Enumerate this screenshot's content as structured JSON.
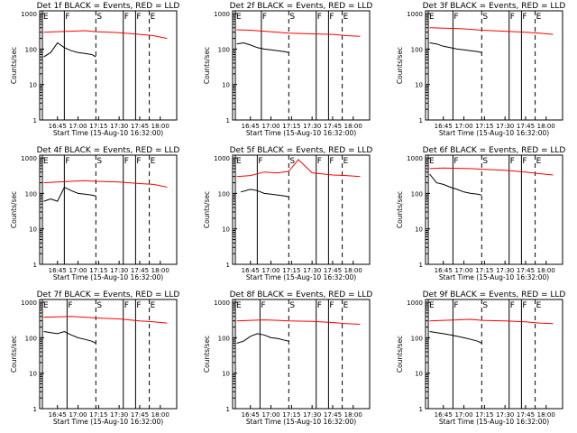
{
  "colors": {
    "events": "#000000",
    "lld": "#ff0000",
    "axis": "#000000",
    "background": "#ffffff"
  },
  "shared": {
    "xlabel": "Start Time (15-Aug-10 16:32:00)",
    "ylabel": "Counts/sec",
    "x_ticks": [
      "16:45",
      "17:00",
      "17:15",
      "17:30",
      "17:45",
      "18:00"
    ],
    "y_ticks": [
      "1",
      "10",
      "100",
      "1000"
    ],
    "y_scale": "log",
    "ylim": [
      1,
      1200
    ]
  },
  "chart_data": [
    {
      "type": "line",
      "title": "Det 1f BLACK = Events, RED = LLD",
      "series": [
        {
          "name": "Events",
          "x": [
            "16:35",
            "16:40",
            "16:45",
            "16:50",
            "16:55",
            "17:00",
            "17:05",
            "17:10",
            "17:13"
          ],
          "y": [
            60,
            80,
            150,
            110,
            90,
            80,
            75,
            70,
            60
          ]
        },
        {
          "name": "LLD",
          "x": [
            "16:35",
            "16:45",
            "16:55",
            "17:05",
            "17:13",
            "17:30",
            "17:45",
            "17:55",
            "18:05"
          ],
          "y": [
            300,
            310,
            320,
            330,
            310,
            290,
            260,
            240,
            200
          ]
        }
      ],
      "annotations": [
        {
          "x": "16:34",
          "text": "E"
        },
        {
          "x": "16:50",
          "text": "F"
        },
        {
          "x": "17:13",
          "text": "S"
        },
        {
          "x": "17:33",
          "text": "F"
        },
        {
          "x": "17:42",
          "text": "F"
        },
        {
          "x": "17:52",
          "text": "E"
        }
      ]
    },
    {
      "type": "line",
      "title": "Det 2f BLACK = Events, RED = LLD",
      "series": [
        {
          "name": "Events",
          "x": [
            "16:35",
            "16:40",
            "16:45",
            "16:50",
            "16:55",
            "17:00",
            "17:05",
            "17:10",
            "17:13"
          ],
          "y": [
            140,
            150,
            130,
            110,
            100,
            95,
            90,
            85,
            80
          ]
        },
        {
          "name": "LLD",
          "x": [
            "16:35",
            "16:45",
            "16:55",
            "17:05",
            "17:13",
            "17:30",
            "17:45",
            "17:55",
            "18:05"
          ],
          "y": [
            350,
            340,
            320,
            300,
            280,
            270,
            260,
            240,
            230
          ]
        }
      ],
      "annotations": [
        {
          "x": "16:34",
          "text": "E"
        },
        {
          "x": "16:53",
          "text": "F"
        },
        {
          "x": "17:13",
          "text": "S"
        },
        {
          "x": "17:33",
          "text": "F"
        },
        {
          "x": "17:42",
          "text": "F"
        },
        {
          "x": "17:52",
          "text": "E"
        }
      ]
    },
    {
      "type": "line",
      "title": "Det 3f BLACK = Events, RED = LLD",
      "series": [
        {
          "name": "Events",
          "x": [
            "16:35",
            "16:40",
            "16:45",
            "16:50",
            "16:55",
            "17:00",
            "17:05",
            "17:10",
            "17:13"
          ],
          "y": [
            150,
            140,
            120,
            110,
            100,
            95,
            90,
            85,
            80
          ]
        },
        {
          "name": "LLD",
          "x": [
            "16:35",
            "16:45",
            "16:55",
            "17:05",
            "17:13",
            "17:30",
            "17:45",
            "17:55",
            "18:05"
          ],
          "y": [
            400,
            390,
            380,
            360,
            340,
            320,
            300,
            280,
            260
          ]
        }
      ],
      "annotations": [
        {
          "x": "16:34",
          "text": "E"
        },
        {
          "x": "16:52",
          "text": "F"
        },
        {
          "x": "17:13",
          "text": "S"
        },
        {
          "x": "17:33",
          "text": "F"
        },
        {
          "x": "17:42",
          "text": "F"
        },
        {
          "x": "17:52",
          "text": "E"
        }
      ]
    },
    {
      "type": "line",
      "title": "Det 4f BLACK = Events, RED = LLD",
      "series": [
        {
          "name": "Events",
          "x": [
            "16:35",
            "16:40",
            "16:45",
            "16:50",
            "16:55",
            "17:00",
            "17:05",
            "17:10",
            "17:13"
          ],
          "y": [
            60,
            70,
            60,
            150,
            120,
            100,
            95,
            90,
            85
          ]
        },
        {
          "name": "LLD",
          "x": [
            "16:35",
            "16:45",
            "16:55",
            "17:05",
            "17:13",
            "17:30",
            "17:45",
            "17:55",
            "18:05"
          ],
          "y": [
            200,
            210,
            220,
            230,
            220,
            210,
            190,
            180,
            150
          ]
        }
      ],
      "annotations": [
        {
          "x": "16:34",
          "text": "E"
        },
        {
          "x": "16:50",
          "text": "F"
        },
        {
          "x": "17:13",
          "text": "S"
        },
        {
          "x": "17:33",
          "text": "F"
        },
        {
          "x": "17:42",
          "text": "F"
        },
        {
          "x": "17:52",
          "text": "E"
        }
      ]
    },
    {
      "type": "line",
      "title": "Det 5f BLACK = Events, RED = LLD",
      "series": [
        {
          "name": "Events",
          "x": [
            "16:38",
            "16:45",
            "16:50",
            "16:55",
            "17:00",
            "17:05",
            "17:10",
            "17:13"
          ],
          "y": [
            110,
            130,
            120,
            100,
            95,
            90,
            85,
            80
          ]
        },
        {
          "name": "LLD",
          "x": [
            "16:35",
            "16:45",
            "16:55",
            "17:05",
            "17:13",
            "17:20",
            "17:30",
            "17:45",
            "17:55",
            "18:05"
          ],
          "y": [
            300,
            320,
            400,
            380,
            420,
            900,
            380,
            330,
            320,
            300
          ]
        }
      ],
      "annotations": [
        {
          "x": "16:34",
          "text": "E"
        },
        {
          "x": "16:50",
          "text": "F"
        },
        {
          "x": "17:13",
          "text": "S"
        },
        {
          "x": "17:33",
          "text": "F"
        },
        {
          "x": "17:42",
          "text": "F"
        },
        {
          "x": "17:52",
          "text": "E"
        }
      ]
    },
    {
      "type": "line",
      "title": "Det 6f BLACK = Events, RED = LLD",
      "series": [
        {
          "name": "Events",
          "x": [
            "16:35",
            "16:40",
            "16:45",
            "16:50",
            "16:55",
            "17:00",
            "17:05",
            "17:10",
            "17:13"
          ],
          "y": [
            350,
            200,
            180,
            150,
            130,
            110,
            100,
            95,
            90
          ]
        },
        {
          "name": "LLD",
          "x": [
            "16:35",
            "16:45",
            "16:55",
            "17:05",
            "17:13",
            "17:30",
            "17:45",
            "17:55",
            "18:05"
          ],
          "y": [
            500,
            520,
            510,
            500,
            480,
            450,
            400,
            360,
            330
          ]
        }
      ],
      "annotations": [
        {
          "x": "16:34",
          "text": "E"
        },
        {
          "x": "16:52",
          "text": "F"
        },
        {
          "x": "17:13",
          "text": "S"
        },
        {
          "x": "17:33",
          "text": "F"
        },
        {
          "x": "17:42",
          "text": "F"
        },
        {
          "x": "17:52",
          "text": "E"
        }
      ]
    },
    {
      "type": "line",
      "title": "Det 7f BLACK = Events, RED = LLD",
      "series": [
        {
          "name": "Events",
          "x": [
            "16:35",
            "16:40",
            "16:45",
            "16:50",
            "16:55",
            "17:00",
            "17:05",
            "17:10",
            "17:13"
          ],
          "y": [
            150,
            140,
            130,
            150,
            120,
            100,
            90,
            80,
            70
          ]
        },
        {
          "name": "LLD",
          "x": [
            "16:35",
            "16:45",
            "16:55",
            "17:05",
            "17:13",
            "17:30",
            "17:45",
            "17:55",
            "18:05"
          ],
          "y": [
            380,
            390,
            400,
            380,
            360,
            340,
            300,
            280,
            260
          ]
        }
      ],
      "annotations": [
        {
          "x": "16:34",
          "text": "E"
        },
        {
          "x": "16:52",
          "text": "F"
        },
        {
          "x": "17:13",
          "text": "S"
        },
        {
          "x": "17:33",
          "text": "F"
        },
        {
          "x": "17:42",
          "text": "F"
        },
        {
          "x": "17:52",
          "text": "E"
        }
      ]
    },
    {
      "type": "line",
      "title": "Det 8f BLACK = Events, RED = LLD",
      "series": [
        {
          "name": "Events",
          "x": [
            "16:35",
            "16:40",
            "16:45",
            "16:50",
            "16:55",
            "17:00",
            "17:05",
            "17:10",
            "17:13"
          ],
          "y": [
            70,
            80,
            110,
            130,
            120,
            100,
            95,
            85,
            80
          ]
        },
        {
          "name": "LLD",
          "x": [
            "16:35",
            "16:45",
            "16:55",
            "17:05",
            "17:13",
            "17:30",
            "17:45",
            "17:55",
            "18:05"
          ],
          "y": [
            300,
            310,
            320,
            310,
            300,
            290,
            270,
            250,
            240
          ]
        }
      ],
      "annotations": [
        {
          "x": "16:34",
          "text": "E"
        },
        {
          "x": "16:52",
          "text": "F"
        },
        {
          "x": "17:13",
          "text": "S"
        },
        {
          "x": "17:33",
          "text": "F"
        },
        {
          "x": "17:42",
          "text": "F"
        },
        {
          "x": "17:52",
          "text": "E"
        }
      ]
    },
    {
      "type": "line",
      "title": "Det 9f BLACK = Events, RED = LLD",
      "series": [
        {
          "name": "Events",
          "x": [
            "16:35",
            "16:40",
            "16:45",
            "16:50",
            "16:55",
            "17:00",
            "17:05",
            "17:10",
            "17:13"
          ],
          "y": [
            150,
            140,
            130,
            120,
            110,
            100,
            90,
            80,
            70
          ]
        },
        {
          "name": "LLD",
          "x": [
            "16:35",
            "16:45",
            "16:55",
            "17:05",
            "17:13",
            "17:30",
            "17:45",
            "17:55",
            "18:05"
          ],
          "y": [
            300,
            310,
            320,
            330,
            310,
            300,
            280,
            260,
            250
          ]
        }
      ],
      "annotations": [
        {
          "x": "16:34",
          "text": "E"
        },
        {
          "x": "16:52",
          "text": "F"
        },
        {
          "x": "17:13",
          "text": "S"
        },
        {
          "x": "17:33",
          "text": "F"
        },
        {
          "x": "17:42",
          "text": "F"
        },
        {
          "x": "17:52",
          "text": "E"
        }
      ]
    }
  ]
}
